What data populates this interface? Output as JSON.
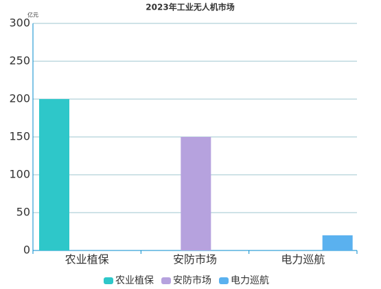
{
  "chart_data": {
    "type": "bar",
    "title": "2023年工业无人机市场",
    "y_unit": "亿元",
    "categories": [
      "农业植保",
      "安防市场",
      "电力巡航"
    ],
    "series": [
      {
        "name": "农业植保",
        "color": "#2ec7c9",
        "values": [
          200,
          0,
          0
        ]
      },
      {
        "name": "安防市场",
        "color": "#b6a2de",
        "values": [
          0,
          150,
          0
        ]
      },
      {
        "name": "电力巡航",
        "color": "#5ab1ef",
        "values": [
          0,
          0,
          20
        ]
      }
    ],
    "ylim": [
      0,
      300
    ],
    "yticks": [
      0,
      50,
      100,
      150,
      200,
      250,
      300
    ],
    "grid": true,
    "legend": "bottom"
  }
}
